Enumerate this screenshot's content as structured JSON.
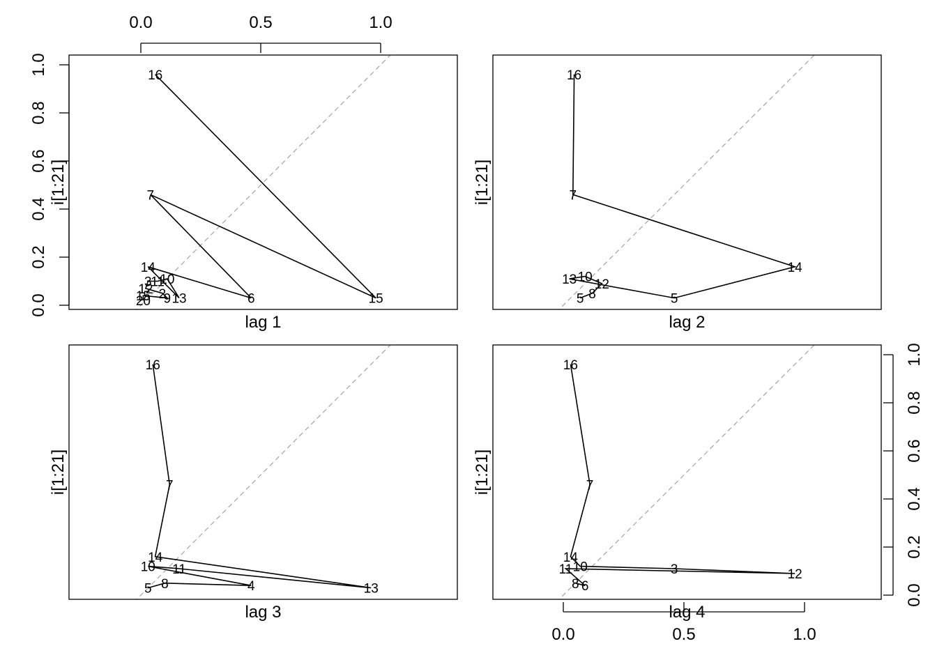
{
  "chart_data": [
    {
      "type": "line",
      "xlabel": "lag 1",
      "ylabel": "i[1:21]",
      "xlim": [
        0,
        1
      ],
      "ylim": [
        0,
        1
      ],
      "top_ticks": [
        "0.0",
        "0.5",
        "1.0"
      ],
      "left_ticks": [
        "0.0",
        "0.2",
        "0.4",
        "0.6",
        "0.8",
        "1.0"
      ],
      "diagonal": true,
      "points": [
        {
          "label": "16",
          "x": 0.06,
          "y": 0.96
        },
        {
          "label": "15",
          "x": 0.98,
          "y": 0.03
        },
        {
          "label": "7",
          "x": 0.04,
          "y": 0.46
        },
        {
          "label": "6",
          "x": 0.46,
          "y": 0.03
        },
        {
          "label": "14",
          "x": 0.03,
          "y": 0.16
        },
        {
          "label": "13",
          "x": 0.16,
          "y": 0.03
        },
        {
          "label": "10",
          "x": 0.11,
          "y": 0.11
        },
        {
          "label": "11",
          "x": 0.07,
          "y": 0.1
        },
        {
          "label": "3",
          "x": 0.03,
          "y": 0.1
        },
        {
          "label": "12",
          "x": 0.02,
          "y": 0.07
        },
        {
          "label": "2",
          "x": 0.09,
          "y": 0.05
        },
        {
          "label": "9",
          "x": 0.11,
          "y": 0.03
        },
        {
          "label": "15",
          "x": 0.01,
          "y": 0.04
        },
        {
          "label": "20",
          "x": 0.01,
          "y": 0.02
        }
      ]
    },
    {
      "type": "line",
      "xlabel": "lag 2",
      "ylabel": "i[1:21]",
      "xlim": [
        0,
        1
      ],
      "ylim": [
        0,
        1
      ],
      "diagonal": true,
      "points": [
        {
          "label": "16",
          "x": 0.045,
          "y": 0.96
        },
        {
          "label": "7",
          "x": 0.04,
          "y": 0.46
        },
        {
          "label": "14",
          "x": 0.96,
          "y": 0.16
        },
        {
          "label": "5",
          "x": 0.46,
          "y": 0.03
        },
        {
          "label": "13",
          "x": 0.025,
          "y": 0.11
        },
        {
          "label": "10",
          "x": 0.09,
          "y": 0.12
        },
        {
          "label": "12",
          "x": 0.16,
          "y": 0.09
        },
        {
          "label": "8",
          "x": 0.12,
          "y": 0.05
        },
        {
          "label": "5",
          "x": 0.07,
          "y": 0.03
        }
      ]
    },
    {
      "type": "line",
      "xlabel": "lag 3",
      "ylabel": "i[1:21]",
      "xlim": [
        0,
        1
      ],
      "ylim": [
        0,
        1
      ],
      "diagonal": true,
      "points": [
        {
          "label": "16",
          "x": 0.05,
          "y": 0.96
        },
        {
          "label": "7",
          "x": 0.12,
          "y": 0.46
        },
        {
          "label": "14",
          "x": 0.06,
          "y": 0.16
        },
        {
          "label": "13",
          "x": 0.96,
          "y": 0.03
        },
        {
          "label": "11",
          "x": 0.16,
          "y": 0.11
        },
        {
          "label": "10",
          "x": 0.03,
          "y": 0.12
        },
        {
          "label": "4",
          "x": 0.46,
          "y": 0.04
        },
        {
          "label": "8",
          "x": 0.1,
          "y": 0.05
        },
        {
          "label": "5",
          "x": 0.03,
          "y": 0.03
        }
      ]
    },
    {
      "type": "line",
      "xlabel": "lag 4",
      "ylabel": "i[1:21]",
      "xlim": [
        0,
        1
      ],
      "ylim": [
        0,
        1
      ],
      "bottom_ticks": [
        "0.0",
        "0.5",
        "1.0"
      ],
      "right_ticks": [
        "0.0",
        "0.2",
        "0.4",
        "0.6",
        "0.8",
        "1.0"
      ],
      "diagonal": true,
      "points": [
        {
          "label": "16",
          "x": 0.03,
          "y": 0.96
        },
        {
          "label": "7",
          "x": 0.11,
          "y": 0.46
        },
        {
          "label": "14",
          "x": 0.03,
          "y": 0.16
        },
        {
          "label": "10",
          "x": 0.07,
          "y": 0.12
        },
        {
          "label": "3",
          "x": 0.46,
          "y": 0.11
        },
        {
          "label": "12",
          "x": 0.96,
          "y": 0.09
        },
        {
          "label": "11",
          "x": 0.01,
          "y": 0.11
        },
        {
          "label": "6",
          "x": 0.09,
          "y": 0.04
        },
        {
          "label": "8",
          "x": 0.05,
          "y": 0.05
        }
      ]
    }
  ]
}
